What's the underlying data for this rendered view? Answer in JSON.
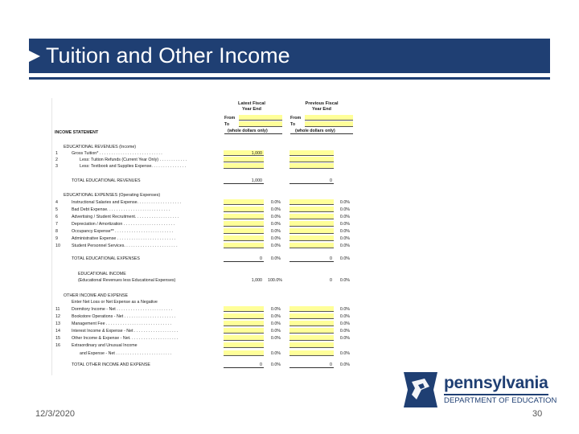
{
  "slide": {
    "title": "Tuition and Other Income",
    "date": "12/3/2020",
    "page_number": "30",
    "accent_color": "#1f3f73"
  },
  "sheet": {
    "col_latest": [
      "Latest Fiscal",
      "Year End"
    ],
    "col_previous": [
      "Previous Fiscal",
      "Year End"
    ],
    "from": "From",
    "to": "To",
    "whole_dollars": "(whole dollars only)",
    "income_statement": "INCOME STATEMENT",
    "edu_rev_header": "EDUCATIONAL REVENUES (Income)",
    "edu_rev_items": [
      {
        "n": "1",
        "label": "Gross Tuition* . . . . . . . . . . . . . . . . . . . . . . . . . . .",
        "v1": "1,000",
        "v2": ""
      },
      {
        "n": "2",
        "label": "Less: Tuition Refunds (Current Year Only) . . . . . . . . . . . .",
        "v1": "",
        "v2": ""
      },
      {
        "n": "3",
        "label": "Less: Textbook and Supplies Expense. . . . . . . . . . . . . . .",
        "v1": "",
        "v2": ""
      }
    ],
    "total_edu_rev": {
      "label": "TOTAL EDUCATIONAL REVENUES",
      "v1": "1,000",
      "v2": "0"
    },
    "edu_exp_header": "EDUCATIONAL EXPENSES (Operating Expenses)",
    "edu_exp_items": [
      {
        "n": "4",
        "label": "Instructional Salaries and Expense. . . . . . . . . . . . . . . . . . .",
        "p1": "0.0%",
        "p2": "0.0%"
      },
      {
        "n": "5",
        "label": "Bad Debt Expense. . . . . . . . . . . . . . . . . . . . . . . . . . .",
        "p1": "0.0%",
        "p2": "0.0%"
      },
      {
        "n": "6",
        "label": "Advertising / Student Recruitment. . . . . . . . . . . . . . . . . . .",
        "p1": "0.0%",
        "p2": "0.0%"
      },
      {
        "n": "7",
        "label": "Depreciation / Amortization . . . . . . . . . . . . . . . . . . . . . .",
        "p1": "0.0%",
        "p2": "0.0%"
      },
      {
        "n": "8",
        "label": "Occupancy Expense** . . . . . . . . . . . . . . . . . . . . . . . . .",
        "p1": "0.0%",
        "p2": "0.0%"
      },
      {
        "n": "9",
        "label": "Administrative Expense . . . . . . . . . . . . . . . . . . . . . . . . .",
        "p1": "0.0%",
        "p2": "0.0%"
      },
      {
        "n": "10",
        "label": "Student Personnel Services. . . . . . . . . . . . . . . . . . . . . . .",
        "p1": "0.0%",
        "p2": "0.0%"
      }
    ],
    "total_edu_exp": {
      "label": "TOTAL EDUCATIONAL EXPENSES",
      "v1": "0",
      "p1": "0.0%",
      "v2": "0",
      "p2": "0.0%"
    },
    "edu_income_header": "EDUCATIONAL INCOME",
    "edu_income": {
      "label": "(Educational Revenues less Educational Expenses)",
      "v1": "1,000",
      "p1": "100.0%",
      "v2": "0",
      "p2": "0.0%"
    },
    "other_header": "OTHER INCOME AND EXPENSE",
    "other_sub": "Enter Net Loss or Net Expense as a Negative",
    "other_items": [
      {
        "n": "11",
        "label": "Dormitory Income - Net . . . . . . . . . . . . . . . . . . . . . . . .",
        "p1": "0.0%",
        "p2": "0.0%"
      },
      {
        "n": "12",
        "label": "Bookstore Operations - Net . . . . . . . . . . . . . . . . . . . . . .",
        "p1": "0.0%",
        "p2": "0.0%"
      },
      {
        "n": "13",
        "label": "Management Fee . . . . . . . . . . . . . . . . . . . . . . . . . . . .",
        "p1": "0.0%",
        "p2": "0.0%"
      },
      {
        "n": "14",
        "label": "Interest Income & Expense - Net . . . . . . . . . . . . . . . . . . .",
        "p1": "0.0%",
        "p2": "0.0%"
      },
      {
        "n": "15",
        "label": "Other Income & Expense - Net. . . . . . . . . . . . . . . . . . . . .",
        "p1": "0.0%",
        "p2": "0.0%"
      },
      {
        "n": "16",
        "label": "Extraordinary and Unusual Income",
        "p1": "",
        "p2": ""
      }
    ],
    "other_item_16b": {
      "label": "and Expense - Net . . . . . . . . . . . . . . . . . . . . . . . .",
      "p1": "0.0%",
      "p2": "0.0%"
    },
    "total_other": {
      "label": "TOTAL OTHER INCOME AND EXPENSE",
      "v1": "0",
      "p1": "0.0%",
      "v2": "0",
      "p2": "0.0%"
    }
  },
  "logo": {
    "wordmark": "pennsylvania",
    "subtitle": "DEPARTMENT OF EDUCATION",
    "icon": "keystone-icon"
  }
}
